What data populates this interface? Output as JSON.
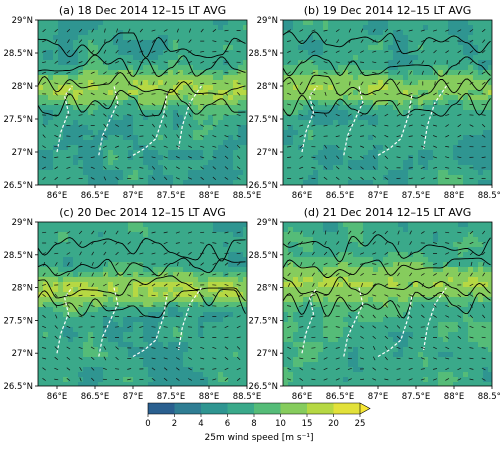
{
  "figure": {
    "panels": [
      {
        "title": "(a) 18 Dec 2014 12–15 LT AVG"
      },
      {
        "title": "(b) 19 Dec 2014 12–15 LT AVG"
      },
      {
        "title": "(c) 20 Dec 2014 12–15 LT AVG"
      },
      {
        "title": "(d) 21 Dec 2014 12–15 LT AVG"
      }
    ],
    "x_ticks": [
      "86°E",
      "86.5°E",
      "87°E",
      "87.5°E",
      "88°E",
      "88.5°E"
    ],
    "y_ticks": [
      "29°N",
      "28.5°N",
      "28°N",
      "27.5°N",
      "27°N",
      "26.5°N"
    ],
    "colorbar": {
      "label": "25m wind speed [m s⁻¹]",
      "ticks": [
        "0",
        "2",
        "4",
        "6",
        "8",
        "10",
        "15",
        "20",
        "25"
      ],
      "colors": [
        "#2a5f8f",
        "#2f7d93",
        "#2f9591",
        "#3aa98a",
        "#55bc78",
        "#86cc5d",
        "#b6d843",
        "#e2e13a",
        "#f7e733"
      ],
      "extend": "max"
    }
  },
  "chart_data": [
    {
      "type": "heatmap",
      "title": "(a) 18 Dec 2014 12–15 LT AVG",
      "variable": "25m wind speed [m s⁻¹]",
      "xlim": [
        85.75,
        88.5
      ],
      "ylim": [
        26.5,
        29
      ],
      "x_ticks": [
        86,
        86.5,
        87,
        87.5,
        88,
        88.5
      ],
      "y_ticks": [
        26.5,
        27,
        27.5,
        28,
        28.5,
        29
      ],
      "color_range": [
        0,
        25
      ],
      "high_wind_band_lat": 28.0,
      "high_wind_band_speed": 13,
      "background_speed": 4
    },
    {
      "type": "heatmap",
      "title": "(b) 19 Dec 2014 12–15 LT AVG",
      "variable": "25m wind speed [m s⁻¹]",
      "xlim": [
        85.75,
        88.5
      ],
      "ylim": [
        26.5,
        29
      ],
      "x_ticks": [
        86,
        86.5,
        87,
        87.5,
        88,
        88.5
      ],
      "y_ticks": [
        26.5,
        27,
        27.5,
        28,
        28.5,
        29
      ],
      "color_range": [
        0,
        25
      ],
      "high_wind_band_lat": 28.0,
      "high_wind_band_speed": 11,
      "background_speed": 4
    },
    {
      "type": "heatmap",
      "title": "(c) 20 Dec 2014 12–15 LT AVG",
      "variable": "25m wind speed [m s⁻¹]",
      "xlim": [
        85.75,
        88.5
      ],
      "ylim": [
        26.5,
        29
      ],
      "x_ticks": [
        86,
        86.5,
        87,
        87.5,
        88,
        88.5
      ],
      "y_ticks": [
        26.5,
        27,
        27.5,
        28,
        28.5,
        29
      ],
      "color_range": [
        0,
        25
      ],
      "high_wind_band_lat": 28.0,
      "high_wind_band_speed": 13,
      "background_speed": 4
    },
    {
      "type": "heatmap",
      "title": "(d) 21 Dec 2014 12–15 LT AVG",
      "variable": "25m wind speed [m s⁻¹]",
      "xlim": [
        85.75,
        88.5
      ],
      "ylim": [
        26.5,
        29
      ],
      "x_ticks": [
        86,
        86.5,
        87,
        87.5,
        88,
        88.5
      ],
      "y_ticks": [
        26.5,
        27,
        27.5,
        28,
        28.5,
        29
      ],
      "color_range": [
        0,
        25
      ],
      "high_wind_band_lat": 28.1,
      "high_wind_band_speed": 11,
      "background_speed": 5
    }
  ]
}
